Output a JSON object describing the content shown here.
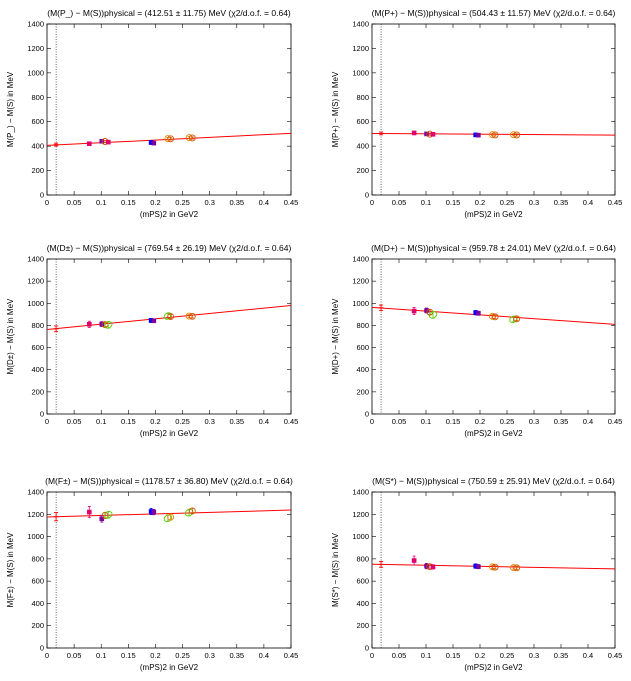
{
  "chart_data": [
    {
      "type": "scatter",
      "title": "(M(P_) − M(S))physical = (412.51 ± 11.75) MeV (χ2/d.o.f. = 0.64)",
      "ylabel": "M(P_) − M(S) in MeV",
      "xlabel": "(mPS)2 in GeV2",
      "xlim": [
        0,
        0.45
      ],
      "ylim": [
        0,
        1400
      ],
      "physical_point": {
        "x": 0.0168,
        "y": 412.51,
        "err": 11.75
      },
      "fit_line": [
        [
          0,
          406
        ],
        [
          0.45,
          505
        ]
      ],
      "points": [
        {
          "x": 0.078,
          "y": 420,
          "err": 12,
          "color": "#e0006e",
          "marker": "square"
        },
        {
          "x": 0.101,
          "y": 440,
          "err": 10,
          "color": "#7a00a0",
          "marker": "square"
        },
        {
          "x": 0.107,
          "y": 438,
          "err": 9,
          "color": "#cc5500",
          "marker": "circle"
        },
        {
          "x": 0.113,
          "y": 433,
          "err": 9,
          "color": "#e0006e",
          "marker": "square"
        },
        {
          "x": 0.192,
          "y": 430,
          "err": 15,
          "color": "#0000ff",
          "marker": "square"
        },
        {
          "x": 0.197,
          "y": 425,
          "err": 12,
          "color": "#7a00a0",
          "marker": "square"
        },
        {
          "x": 0.223,
          "y": 462,
          "err": 9,
          "color": "#e88000",
          "marker": "circle"
        },
        {
          "x": 0.228,
          "y": 460,
          "err": 9,
          "color": "#cc5500",
          "marker": "circle"
        },
        {
          "x": 0.262,
          "y": 470,
          "err": 9,
          "color": "#e88000",
          "marker": "circle"
        },
        {
          "x": 0.268,
          "y": 467,
          "err": 9,
          "color": "#cc5500",
          "marker": "circle"
        }
      ]
    },
    {
      "type": "scatter",
      "title": "(M(P+) − M(S))physical = (504.43 ± 11.57) MeV (χ2/d.o.f. = 0.64)",
      "ylabel": "M(P+) − M(S) in MeV",
      "xlabel": "(mPS)2 in GeV2",
      "xlim": [
        0,
        0.45
      ],
      "ylim": [
        0,
        1400
      ],
      "physical_point": {
        "x": 0.0168,
        "y": 504.43,
        "err": 11.57
      },
      "fit_line": [
        [
          0,
          504
        ],
        [
          0.45,
          490
        ]
      ],
      "points": [
        {
          "x": 0.078,
          "y": 508,
          "err": 14,
          "color": "#e0006e",
          "marker": "square"
        },
        {
          "x": 0.101,
          "y": 500,
          "err": 10,
          "color": "#7a00a0",
          "marker": "square"
        },
        {
          "x": 0.107,
          "y": 498,
          "err": 9,
          "color": "#cc5500",
          "marker": "circle"
        },
        {
          "x": 0.113,
          "y": 497,
          "err": 9,
          "color": "#e0006e",
          "marker": "square"
        },
        {
          "x": 0.192,
          "y": 492,
          "err": 14,
          "color": "#0000ff",
          "marker": "square"
        },
        {
          "x": 0.197,
          "y": 490,
          "err": 10,
          "color": "#7a00a0",
          "marker": "square"
        },
        {
          "x": 0.223,
          "y": 494,
          "err": 9,
          "color": "#e88000",
          "marker": "circle"
        },
        {
          "x": 0.228,
          "y": 492,
          "err": 9,
          "color": "#cc5500",
          "marker": "circle"
        },
        {
          "x": 0.262,
          "y": 494,
          "err": 9,
          "color": "#e88000",
          "marker": "circle"
        },
        {
          "x": 0.268,
          "y": 492,
          "err": 9,
          "color": "#cc5500",
          "marker": "circle"
        }
      ]
    },
    {
      "type": "scatter",
      "title": "(M(D±) − M(S))physical = (769.54 ± 26.19) MeV (χ2/d.o.f. = 0.64)",
      "ylabel": "M(D±) − M(S) in MeV",
      "xlabel": "(mPS)2 in GeV2",
      "xlim": [
        0,
        0.45
      ],
      "ylim": [
        0,
        1400
      ],
      "physical_point": {
        "x": 0.0168,
        "y": 769.54,
        "err": 26.19
      },
      "fit_line": [
        [
          0,
          763
        ],
        [
          0.45,
          980
        ]
      ],
      "points": [
        {
          "x": 0.078,
          "y": 810,
          "err": 28,
          "color": "#e0006e",
          "marker": "square"
        },
        {
          "x": 0.101,
          "y": 812,
          "err": 22,
          "color": "#7a00a0",
          "marker": "square"
        },
        {
          "x": 0.107,
          "y": 808,
          "err": 18,
          "color": "#cc5500",
          "marker": "circle"
        },
        {
          "x": 0.113,
          "y": 805,
          "err": 30,
          "color": "#55cc00",
          "marker": "diamond"
        },
        {
          "x": 0.192,
          "y": 845,
          "err": 18,
          "color": "#0000ff",
          "marker": "square"
        },
        {
          "x": 0.197,
          "y": 842,
          "err": 16,
          "color": "#7a00a0",
          "marker": "square"
        },
        {
          "x": 0.223,
          "y": 885,
          "err": 22,
          "color": "#55cc00",
          "marker": "diamond"
        },
        {
          "x": 0.228,
          "y": 880,
          "err": 18,
          "color": "#cc5500",
          "marker": "circle"
        },
        {
          "x": 0.262,
          "y": 885,
          "err": 14,
          "color": "#e88000",
          "marker": "circle"
        },
        {
          "x": 0.268,
          "y": 882,
          "err": 14,
          "color": "#cc5500",
          "marker": "circle"
        }
      ]
    },
    {
      "type": "scatter",
      "title": "(M(D+) − M(S))physical = (959.78 ± 24.01) MeV (χ2/d.o.f. = 0.64)",
      "ylabel": "M(D+) − M(S) in MeV",
      "xlabel": "(mPS)2 in GeV2",
      "xlim": [
        0,
        0.45
      ],
      "ylim": [
        0,
        1400
      ],
      "physical_point": {
        "x": 0.0168,
        "y": 959.78,
        "err": 24.01
      },
      "fit_line": [
        [
          0,
          963
        ],
        [
          0.45,
          810
        ]
      ],
      "points": [
        {
          "x": 0.078,
          "y": 930,
          "err": 32,
          "color": "#e0006e",
          "marker": "square"
        },
        {
          "x": 0.101,
          "y": 935,
          "err": 22,
          "color": "#7a00a0",
          "marker": "square"
        },
        {
          "x": 0.107,
          "y": 920,
          "err": 20,
          "color": "#cc5500",
          "marker": "circle"
        },
        {
          "x": 0.113,
          "y": 895,
          "err": 30,
          "color": "#55cc00",
          "marker": "diamond"
        },
        {
          "x": 0.192,
          "y": 915,
          "err": 20,
          "color": "#0000ff",
          "marker": "square"
        },
        {
          "x": 0.197,
          "y": 910,
          "err": 18,
          "color": "#7a00a0",
          "marker": "square"
        },
        {
          "x": 0.223,
          "y": 882,
          "err": 16,
          "color": "#e88000",
          "marker": "circle"
        },
        {
          "x": 0.228,
          "y": 878,
          "err": 16,
          "color": "#cc5500",
          "marker": "circle"
        },
        {
          "x": 0.262,
          "y": 855,
          "err": 24,
          "color": "#55cc00",
          "marker": "diamond"
        },
        {
          "x": 0.268,
          "y": 860,
          "err": 16,
          "color": "#cc5500",
          "marker": "circle"
        }
      ]
    },
    {
      "type": "scatter",
      "title": "(M(F±) − M(S))physical = (1178.57 ± 36.80) MeV (χ2/d.o.f. = 0.64)",
      "ylabel": "M(F±) − M(S) in MeV",
      "xlabel": "(mPS)2 in GeV2",
      "xlim": [
        0,
        0.45
      ],
      "ylim": [
        0,
        1400
      ],
      "physical_point": {
        "x": 0.0168,
        "y": 1178.57,
        "err": 36.8
      },
      "fit_line": [
        [
          0,
          1176
        ],
        [
          0.45,
          1238
        ]
      ],
      "points": [
        {
          "x": 0.078,
          "y": 1220,
          "err": 50,
          "color": "#e0006e",
          "marker": "square"
        },
        {
          "x": 0.101,
          "y": 1160,
          "err": 30,
          "color": "#7a00a0",
          "marker": "square"
        },
        {
          "x": 0.107,
          "y": 1190,
          "err": 28,
          "color": "#cc5500",
          "marker": "circle"
        },
        {
          "x": 0.113,
          "y": 1195,
          "err": 30,
          "color": "#55cc00",
          "marker": "diamond"
        },
        {
          "x": 0.192,
          "y": 1225,
          "err": 28,
          "color": "#0000ff",
          "marker": "square"
        },
        {
          "x": 0.197,
          "y": 1220,
          "err": 24,
          "color": "#7a00a0",
          "marker": "square"
        },
        {
          "x": 0.223,
          "y": 1165,
          "err": 30,
          "color": "#55cc00",
          "marker": "diamond"
        },
        {
          "x": 0.228,
          "y": 1175,
          "err": 28,
          "color": "#e88000",
          "marker": "circle"
        },
        {
          "x": 0.262,
          "y": 1215,
          "err": 30,
          "color": "#55cc00",
          "marker": "diamond"
        },
        {
          "x": 0.268,
          "y": 1230,
          "err": 24,
          "color": "#cc5500",
          "marker": "circle"
        }
      ]
    },
    {
      "type": "scatter",
      "title": "(M(S*) − M(S))physical = (750.59 ± 25.91) MeV (χ2/d.o.f. = 0.64)",
      "ylabel": "M(S*) − M(S) in MeV",
      "xlabel": "(mPS)2 in GeV2",
      "xlim": [
        0,
        0.45
      ],
      "ylim": [
        0,
        1400
      ],
      "physical_point": {
        "x": 0.0168,
        "y": 750.59,
        "err": 25.91
      },
      "fit_line": [
        [
          0,
          752
        ],
        [
          0.45,
          710
        ]
      ],
      "points": [
        {
          "x": 0.078,
          "y": 785,
          "err": 40,
          "color": "#e0006e",
          "marker": "square"
        },
        {
          "x": 0.101,
          "y": 735,
          "err": 24,
          "color": "#7a00a0",
          "marker": "square"
        },
        {
          "x": 0.107,
          "y": 730,
          "err": 20,
          "color": "#cc5500",
          "marker": "circle"
        },
        {
          "x": 0.113,
          "y": 728,
          "err": 20,
          "color": "#e0006e",
          "marker": "square"
        },
        {
          "x": 0.192,
          "y": 735,
          "err": 20,
          "color": "#0000ff",
          "marker": "square"
        },
        {
          "x": 0.197,
          "y": 730,
          "err": 18,
          "color": "#7a00a0",
          "marker": "square"
        },
        {
          "x": 0.223,
          "y": 728,
          "err": 14,
          "color": "#e88000",
          "marker": "circle"
        },
        {
          "x": 0.228,
          "y": 725,
          "err": 14,
          "color": "#cc5500",
          "marker": "circle"
        },
        {
          "x": 0.262,
          "y": 722,
          "err": 14,
          "color": "#e88000",
          "marker": "circle"
        },
        {
          "x": 0.268,
          "y": 720,
          "err": 14,
          "color": "#cc5500",
          "marker": "circle"
        }
      ]
    }
  ],
  "shared": {
    "xticks": [
      0,
      0.05,
      0.1,
      0.15,
      0.2,
      0.25,
      0.3,
      0.35,
      0.4,
      0.45
    ],
    "yticks": [
      0,
      200,
      400,
      600,
      800,
      1000,
      1200,
      1400
    ],
    "fit_color": "#ff0000",
    "physical_color": "#ff0000"
  }
}
